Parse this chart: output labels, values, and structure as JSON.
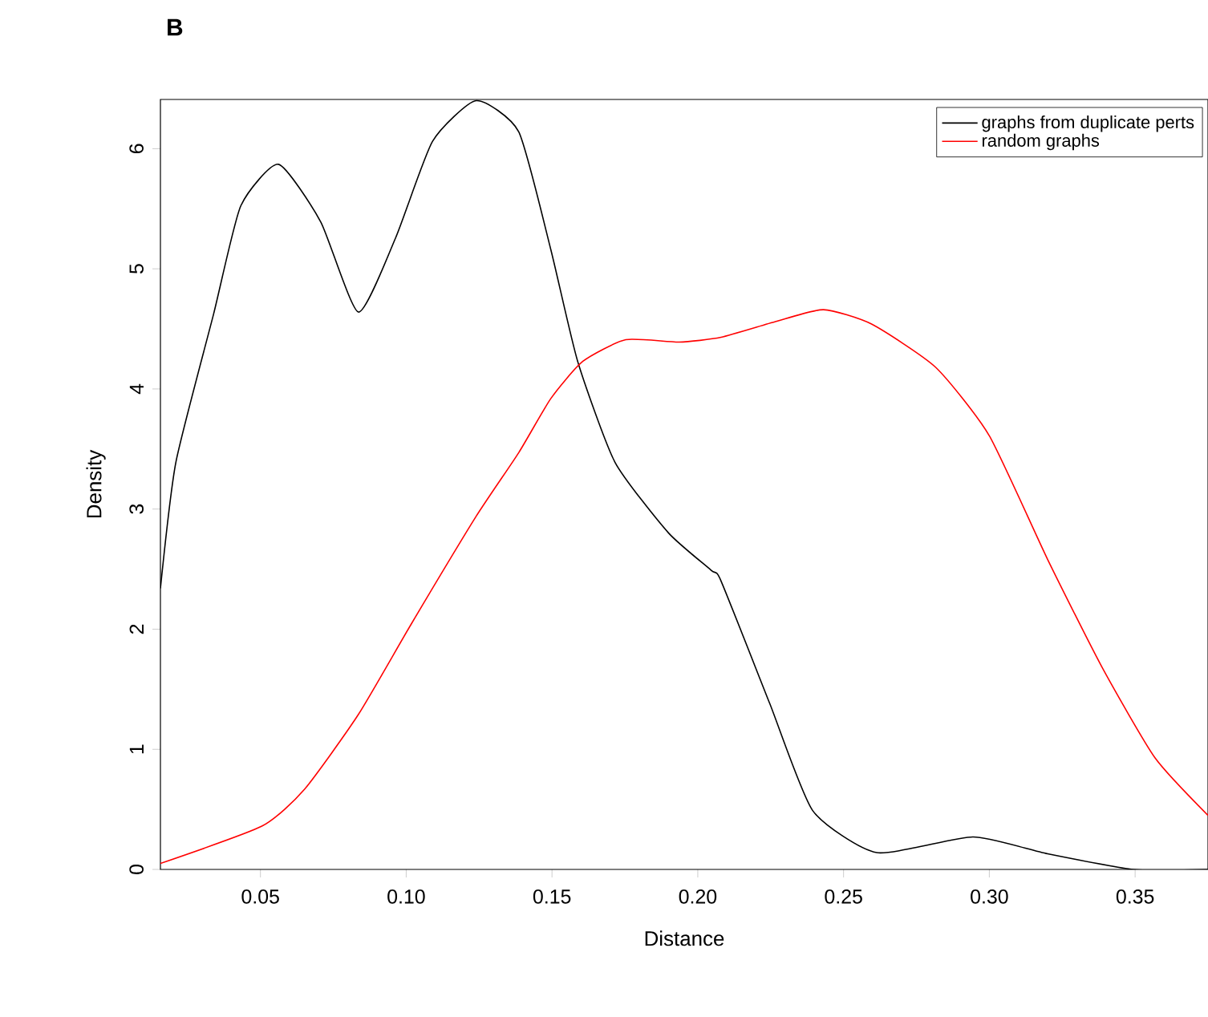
{
  "chart_data": {
    "type": "line",
    "title": "B",
    "xlabel": "Distance",
    "ylabel": "Density",
    "xlim": [
      0.0157,
      0.375
    ],
    "ylim": [
      0,
      6.41
    ],
    "xticks": [
      {
        "value": 0.05,
        "label": "0.05"
      },
      {
        "value": 0.1,
        "label": "0.10"
      },
      {
        "value": 0.15,
        "label": "0.15"
      },
      {
        "value": 0.2,
        "label": "0.20"
      },
      {
        "value": 0.25,
        "label": "0.25"
      },
      {
        "value": 0.3,
        "label": "0.30"
      },
      {
        "value": 0.35,
        "label": "0.35"
      }
    ],
    "yticks": [
      0,
      1,
      2,
      3,
      4,
      5,
      6
    ],
    "legend": "top right",
    "series": [
      {
        "name": "graphs from duplicate perts",
        "color": "#000000",
        "x": [
          0.0157,
          0.021,
          0.034,
          0.0432,
          0.0562,
          0.0707,
          0.0836,
          0.0964,
          0.109,
          0.124,
          0.1386,
          0.1496,
          0.1588,
          0.1716,
          0.19,
          0.2046,
          0.208,
          0.2247,
          0.2394,
          0.2614,
          0.2944,
          0.32,
          0.3494,
          0.375
        ],
        "values": [
          2.34,
          3.39,
          4.63,
          5.52,
          5.87,
          5.39,
          4.64,
          5.26,
          6.06,
          6.4,
          6.14,
          5.16,
          4.23,
          3.39,
          2.8,
          2.49,
          2.4,
          1.38,
          0.49,
          0.14,
          0.27,
          0.13,
          0,
          0
        ]
      },
      {
        "name": "random graphs",
        "color": "#ff0000",
        "x": [
          0.0157,
          0.0505,
          0.0652,
          0.0836,
          0.1019,
          0.124,
          0.1386,
          0.1496,
          0.1606,
          0.1753,
          0.1936,
          0.208,
          0.2266,
          0.2431,
          0.2596,
          0.2816,
          0.3,
          0.32,
          0.3385,
          0.3568,
          0.375
        ],
        "values": [
          0.05,
          0.36,
          0.67,
          1.29,
          2.05,
          2.94,
          3.47,
          3.92,
          4.23,
          4.41,
          4.39,
          4.43,
          4.56,
          4.66,
          4.54,
          4.18,
          3.61,
          2.58,
          1.69,
          0.93,
          0.45
        ]
      }
    ]
  }
}
